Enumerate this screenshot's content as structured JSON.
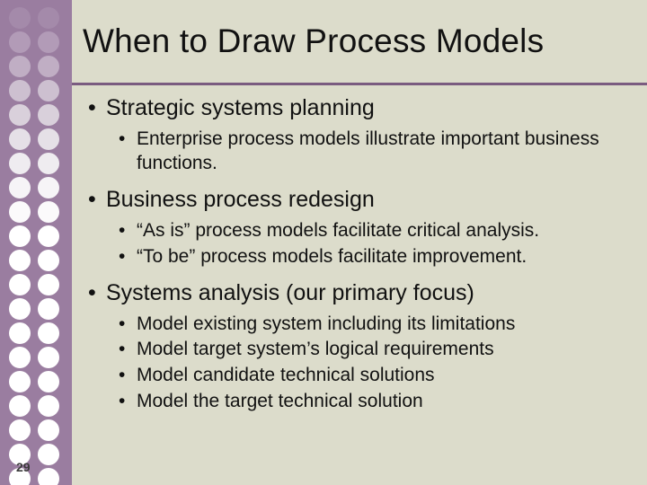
{
  "slide": {
    "title": "When to Draw Process Models",
    "page_number": "29",
    "background_color": "#dcdccb",
    "sidebar_color": "#9a7da0",
    "rule_color": "#7a5c80",
    "text_color": "#111111",
    "title_fontsize": 37,
    "lvl1_fontsize": 25,
    "lvl2_fontsize": 21,
    "dots": {
      "left_colors": [
        "#a48aaa",
        "#b29bb7",
        "#c0aec4",
        "#cdc0d0",
        "#d9d0db",
        "#e5e0e7",
        "#efecf0",
        "#f6f4f7",
        "#fbfafb",
        "#ffffff",
        "#ffffff",
        "#ffffff",
        "#ffffff",
        "#ffffff",
        "#ffffff",
        "#ffffff",
        "#ffffff",
        "#ffffff",
        "#ffffff",
        "#ffffff"
      ],
      "right_colors": [
        "#a48aaa",
        "#b29bb7",
        "#c0aec4",
        "#cdc0d0",
        "#d9d0db",
        "#e5e0e7",
        "#efecf0",
        "#f6f4f7",
        "#fbfafb",
        "#ffffff",
        "#ffffff",
        "#ffffff",
        "#ffffff",
        "#ffffff",
        "#ffffff",
        "#ffffff",
        "#ffffff",
        "#ffffff",
        "#ffffff",
        "#ffffff"
      ]
    },
    "bullets": [
      {
        "text": "Strategic systems planning",
        "children": [
          "Enterprise process models illustrate important business functions."
        ]
      },
      {
        "text": "Business process redesign",
        "children": [
          "“As is” process models facilitate critical analysis.",
          "“To be” process models facilitate improvement."
        ]
      },
      {
        "text": "Systems analysis (our primary focus)",
        "children": [
          "Model existing system including its limitations",
          "Model target system’s logical requirements",
          "Model candidate technical solutions",
          "Model the target technical solution"
        ]
      }
    ]
  }
}
